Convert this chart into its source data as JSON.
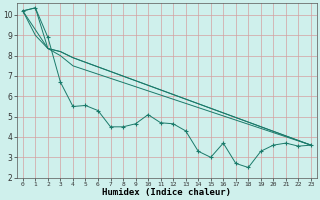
{
  "xlabel": "Humidex (Indice chaleur)",
  "background_color": "#cff0ec",
  "grid_color": "#d4a0a0",
  "line_color": "#1a7a6a",
  "xlim": [
    -0.5,
    23.5
  ],
  "ylim": [
    2,
    10.6
  ],
  "yticks": [
    2,
    3,
    4,
    5,
    6,
    7,
    8,
    9,
    10
  ],
  "xticks": [
    0,
    1,
    2,
    3,
    4,
    5,
    6,
    7,
    8,
    9,
    10,
    11,
    12,
    13,
    14,
    15,
    16,
    17,
    18,
    19,
    20,
    21,
    22,
    23
  ],
  "line1_x": [
    0,
    1,
    2,
    3,
    4,
    5,
    6,
    7,
    8,
    9,
    10,
    11,
    12,
    13,
    14,
    15,
    16,
    17,
    18,
    19,
    20,
    21,
    22,
    23
  ],
  "line1_y": [
    10.2,
    10.35,
    8.9,
    6.7,
    5.5,
    5.55,
    5.3,
    4.5,
    4.5,
    4.65,
    5.1,
    4.7,
    4.65,
    4.3,
    3.3,
    3.0,
    3.7,
    2.7,
    2.5,
    3.3,
    3.6,
    3.7,
    3.55,
    3.6
  ],
  "line2_x": [
    0,
    1,
    2,
    3,
    4,
    23
  ],
  "line2_y": [
    10.2,
    10.35,
    8.35,
    8.2,
    7.9,
    3.6
  ],
  "line3_x": [
    0,
    1,
    2,
    3,
    4,
    23
  ],
  "line3_y": [
    10.2,
    9.0,
    8.35,
    8.2,
    7.9,
    3.6
  ],
  "line4_x": [
    0,
    2,
    3,
    4,
    23
  ],
  "line4_y": [
    10.2,
    8.35,
    8.0,
    7.5,
    3.6
  ]
}
